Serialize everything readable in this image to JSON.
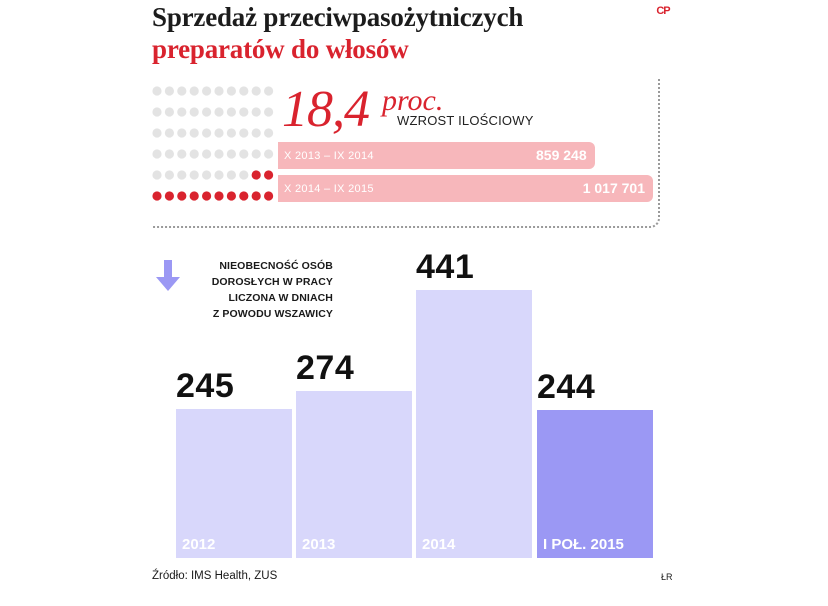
{
  "header": {
    "title_line1": "Sprzedaż przeciwpasożytniczych",
    "title_line2": "preparatów do włosów",
    "logo_text": "CP"
  },
  "highlight": {
    "value": "18,4",
    "unit": "proc.",
    "label": "WZROST ILOŚCIOWY",
    "value_color": "#d9232e"
  },
  "chart_data": [
    {
      "type": "bar",
      "orientation": "horizontal",
      "categories": [
        "X 2013 – IX 2014",
        "X 2014 – IX 2015"
      ],
      "values": [
        859248,
        1017701
      ],
      "value_labels": [
        "859 248",
        "1 017 701"
      ],
      "xlim": [
        0,
        1017701
      ],
      "bar_color": "#f7b7bb"
    },
    {
      "type": "bar",
      "orientation": "vertical",
      "categories": [
        "2012",
        "2013",
        "2014",
        "I POŁ. 2015"
      ],
      "values": [
        245,
        274,
        441,
        244
      ],
      "ylim": [
        0,
        441
      ],
      "annotation": "NIEOBECNOŚĆ OSÓB DOROSŁYCH W PRACY LICZONA W DNIACH Z POWODU WSZAWICY",
      "bar_colors": [
        "#d8d7fb",
        "#d8d7fb",
        "#d8d7fb",
        "#9b98f4"
      ]
    }
  ],
  "note": {
    "lines": [
      "NIEOBECNOŚĆ OSÓB",
      "DOROSŁYCH W PRACY",
      "LICZONA W DNIACH",
      "Z POWODU WSZAWICY"
    ],
    "arrow_color": "#9b98f4"
  },
  "dots": {
    "red": 12,
    "total": 60,
    "red_color": "#d9232e",
    "grey_color": "#e3e3e3"
  },
  "footer": {
    "source": "Źródło: IMS Health, ZUS",
    "initials": "ŁR"
  }
}
